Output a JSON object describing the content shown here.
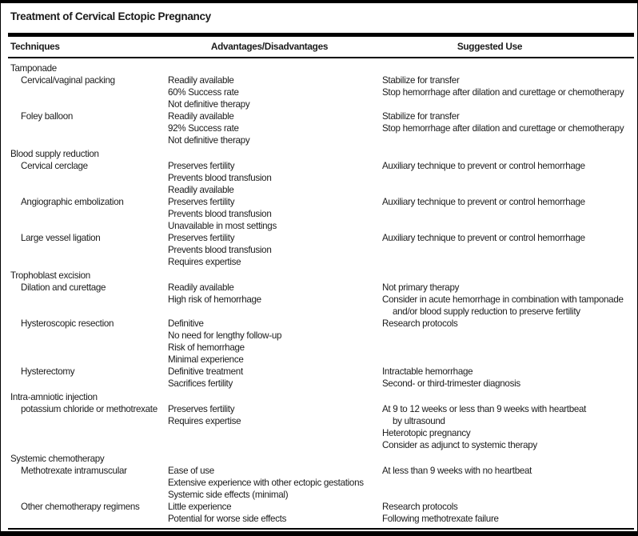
{
  "title": "Treatment of Cervical Ectopic Pregnancy",
  "columns": {
    "techniques": "Techniques",
    "advantages": "Advantages/Disadvantages",
    "suggested": "Suggested Use"
  },
  "groups": [
    {
      "name": "Tamponade",
      "rows": [
        {
          "technique": "Cervical/vaginal packing",
          "advantages": [
            "Readily available",
            "60% Success rate",
            "Not definitive therapy"
          ],
          "suggested": [
            "Stabilize for transfer",
            "Stop hemorrhage after dilation and curettage or chemotherapy"
          ]
        },
        {
          "technique": "Foley balloon",
          "advantages": [
            "Readily available",
            "92% Success rate",
            "Not definitive therapy"
          ],
          "suggested": [
            "Stabilize for transfer",
            "Stop hemorrhage after dilation and curettage or chemotherapy"
          ]
        }
      ]
    },
    {
      "name": "Blood supply reduction",
      "rows": [
        {
          "technique": "Cervical cerclage",
          "advantages": [
            "Preserves fertility",
            "Prevents blood transfusion",
            "Readily available"
          ],
          "suggested": [
            "Auxiliary technique to prevent or control hemorrhage"
          ]
        },
        {
          "technique": "Angiographic embolization",
          "advantages": [
            "Preserves fertility",
            "Prevents blood transfusion",
            "Unavailable in most settings"
          ],
          "suggested": [
            "Auxiliary technique to prevent or control hemorrhage"
          ]
        },
        {
          "technique": "Large vessel ligation",
          "advantages": [
            "Preserves fertility",
            "Prevents blood transfusion",
            "Requires expertise"
          ],
          "suggested": [
            "Auxiliary technique to prevent or control hemorrhage"
          ]
        }
      ]
    },
    {
      "name": "Trophoblast excision",
      "rows": [
        {
          "technique": "Dilation and curettage",
          "advantages": [
            "Readily available",
            "High risk of hemorrhage"
          ],
          "suggested": [
            "Not primary therapy",
            "Consider in acute hemorrhage in combination with tamponade",
            {
              "text": "and/or blood supply reduction to preserve fertility",
              "indent": true
            }
          ]
        },
        {
          "technique": "Hysteroscopic resection",
          "advantages": [
            "Definitive",
            "No need for lengthy follow-up",
            "Risk of hemorrhage",
            "Minimal experience"
          ],
          "suggested": [
            "Research protocols"
          ]
        },
        {
          "technique": "Hysterectomy",
          "advantages": [
            "Definitive treatment",
            "Sacrifices fertility"
          ],
          "suggested": [
            "Intractable hemorrhage",
            "Second- or third-trimester diagnosis"
          ]
        }
      ]
    },
    {
      "name": "Intra-amniotic injection",
      "rows": [
        {
          "technique": "potassium chloride or methotrexate",
          "advantages": [
            "Preserves fertility",
            "Requires expertise"
          ],
          "suggested": [
            "At 9 to 12 weeks or less than 9 weeks with heartbeat",
            {
              "text": "by ultrasound",
              "indent": true
            },
            "Heterotopic pregnancy",
            "Consider as adjunct to systemic therapy"
          ]
        }
      ]
    },
    {
      "name": "Systemic chemotherapy",
      "rows": [
        {
          "technique": "Methotrexate intramuscular",
          "advantages": [
            "Ease of use",
            "Extensive experience with other ectopic gestations",
            "Systemic side effects (minimal)"
          ],
          "suggested": [
            "At less than 9 weeks with no heartbeat"
          ]
        },
        {
          "technique": "Other chemotherapy regimens",
          "advantages": [
            "Little experience",
            "Potential for worse side effects"
          ],
          "suggested": [
            "Research protocols",
            "Following methotrexate failure"
          ]
        }
      ]
    }
  ],
  "colors": {
    "text": "#1b1b1b",
    "rule": "#000000",
    "background": "#ffffff"
  }
}
